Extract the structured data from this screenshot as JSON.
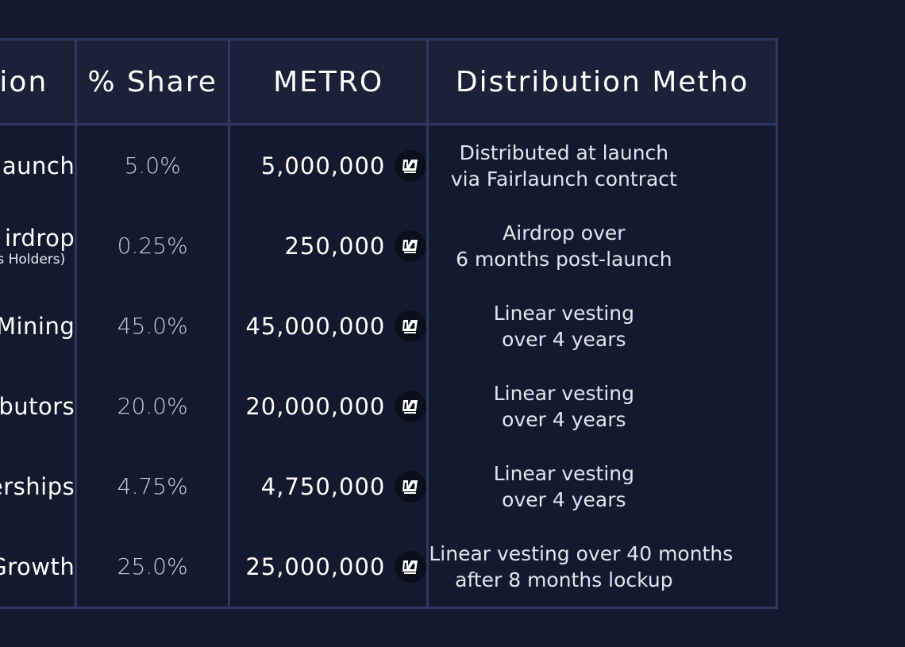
{
  "table": {
    "headers": {
      "allocation": "ocation",
      "share": "% Share",
      "metro": "METRO",
      "distribution": "Distribution Metho"
    },
    "token_icon": "metro-logo-icon",
    "rows": [
      {
        "allocation": "Fairlaunch",
        "allocation_sub": "",
        "share": "5.0%",
        "metro": "5,000,000",
        "distribution_line1": "Distributed at launch",
        "distribution_line2": "via Fairlaunch contract"
      },
      {
        "allocation": "irdrop",
        "allocation_sub": "IIX NFTs Holders)",
        "share": "0.25%",
        "metro": "250,000",
        "distribution_line1": "Airdrop over",
        "distribution_line2": "6 months post-launch"
      },
      {
        "allocation": "dity Mining",
        "allocation_sub": "",
        "share": "45.0%",
        "metro": "45,000,000",
        "distribution_line1": "Linear vesting",
        "distribution_line2": "over 4 years"
      },
      {
        "allocation": "ontributors",
        "allocation_sub": "",
        "share": "20.0%",
        "metro": "20,000,000",
        "distribution_line1": "Linear vesting",
        "distribution_line2": "over 4 years"
      },
      {
        "allocation": "nerships",
        "allocation_sub": "",
        "share": "4.75%",
        "metro": "4,750,000",
        "distribution_line1": "Linear vesting",
        "distribution_line2": "over 4 years"
      },
      {
        "allocation": "re Growth",
        "allocation_sub": "",
        "share": "25.0%",
        "metro": "25,000,000",
        "distribution_line1": "Linear vesting over 40 months",
        "distribution_line2": "after 8 months lockup"
      }
    ]
  }
}
